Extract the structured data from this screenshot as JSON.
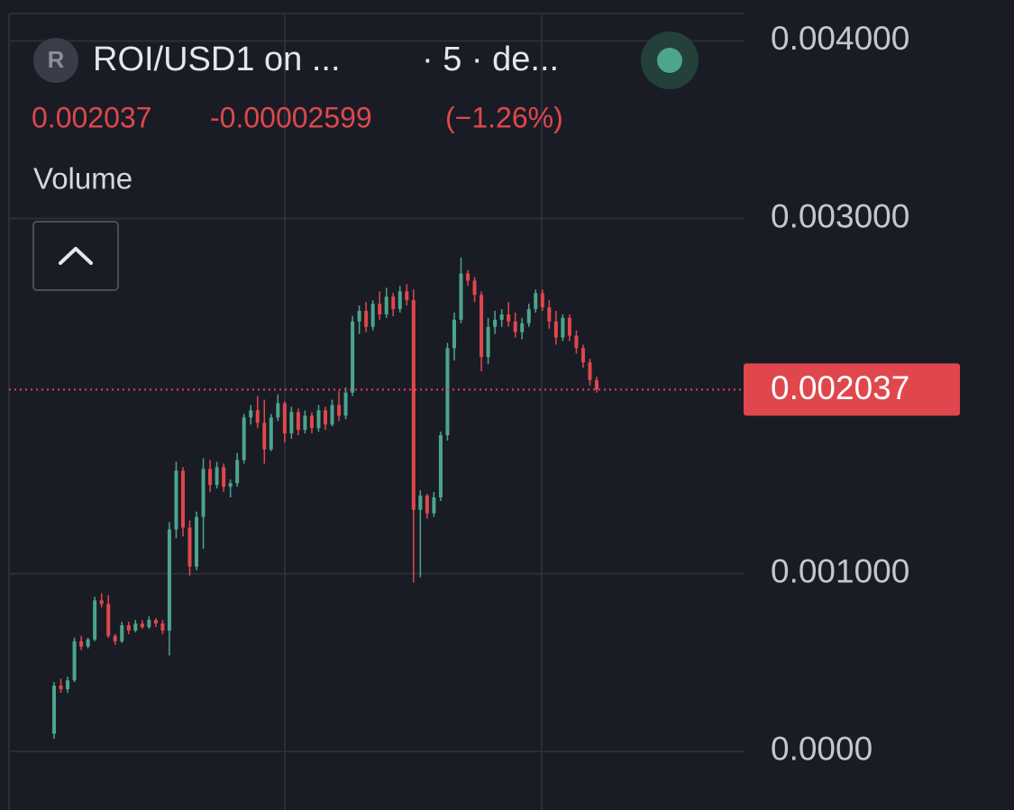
{
  "header": {
    "icon_letter": "R",
    "symbol": "ROI/USD1 on ...",
    "interval": "· 5 · de...",
    "change": "-0.00002599",
    "change_pct": "(−1.26%)",
    "indicator": "Volume"
  },
  "chart_data": {
    "type": "candlestick",
    "up_color": "#4ca58c",
    "down_color": "#e0474c",
    "grid": true,
    "ylim": [
      -0.00033,
      0.00423
    ],
    "yticks": [
      {
        "value": 0.004,
        "label": "0.004000"
      },
      {
        "value": 0.003,
        "label": "0.003000"
      },
      {
        "value": 0.001,
        "label": "0.001000"
      },
      {
        "value": 0,
        "label": "0.0000"
      }
    ],
    "last_price": 0.002037,
    "open": [
      0.0001,
      0.00037,
      0.00035,
      0.0004,
      0.00062,
      0.00059,
      0.00063,
      0.00085,
      0.00083,
      0.00065,
      0.00062,
      0.00071,
      0.00068,
      0.00072,
      0.0007,
      0.00074,
      0.00072,
      0.00068,
      0.00125,
      0.00158,
      0.00126,
      0.00104,
      0.00132,
      0.00159,
      0.0015,
      0.0016,
      0.00149,
      0.00151,
      0.00164,
      0.00188,
      0.00192,
      0.00185,
      0.0017,
      0.00188,
      0.00196,
      0.00179,
      0.00191,
      0.00181,
      0.00189,
      0.00182,
      0.00192,
      0.00184,
      0.00195,
      0.00189,
      0.00202,
      0.00242,
      0.00248,
      0.00239,
      0.00252,
      0.00246,
      0.00256,
      0.00249,
      0.00259,
      0.00254,
      0.00136,
      0.00144,
      0.00134,
      0.00143,
      0.00178,
      0.00227,
      0.00243,
      0.00269,
      0.00265,
      0.00257,
      0.00222,
      0.00239,
      0.00243,
      0.00246,
      0.00242,
      0.00236,
      0.00241,
      0.00249,
      0.00258,
      0.0025,
      0.00242,
      0.00233,
      0.00244,
      0.00234,
      0.00227,
      0.00219,
      0.00209
    ],
    "high": [
      0.00039,
      0.00041,
      0.00042,
      0.00064,
      0.00065,
      0.00064,
      0.00087,
      0.00089,
      0.00088,
      0.00066,
      0.00073,
      0.00073,
      0.00074,
      0.00074,
      0.00076,
      0.00075,
      0.00074,
      0.00129,
      0.00163,
      0.0016,
      0.0013,
      0.00135,
      0.00165,
      0.00164,
      0.00163,
      0.00162,
      0.00153,
      0.00168,
      0.0019,
      0.00195,
      0.002,
      0.00198,
      0.0019,
      0.00201,
      0.00197,
      0.00194,
      0.00193,
      0.00192,
      0.00191,
      0.00195,
      0.00194,
      0.00198,
      0.00203,
      0.00205,
      0.00245,
      0.00251,
      0.00253,
      0.00254,
      0.00259,
      0.00261,
      0.00258,
      0.00262,
      0.00263,
      0.0026,
      0.00147,
      0.00145,
      0.00146,
      0.0018,
      0.0023,
      0.00247,
      0.00278,
      0.00271,
      0.00267,
      0.00259,
      0.00244,
      0.00248,
      0.00249,
      0.00253,
      0.00247,
      0.00244,
      0.00252,
      0.0026,
      0.0026,
      0.00254,
      0.00248,
      0.00246,
      0.00246,
      0.00237,
      0.00229,
      0.00221,
      0.00211
    ],
    "low": [
      7e-05,
      0.00033,
      0.00033,
      0.00039,
      0.00057,
      0.00058,
      0.00062,
      0.00081,
      0.00064,
      0.0006,
      0.00061,
      0.00066,
      0.00067,
      0.00069,
      0.00069,
      0.0007,
      0.00066,
      0.00054,
      0.0012,
      0.00121,
      0.00099,
      0.00102,
      0.00114,
      0.00146,
      0.00148,
      0.00146,
      0.00143,
      0.00149,
      0.00162,
      0.00184,
      0.00182,
      0.00162,
      0.00169,
      0.00186,
      0.00174,
      0.00176,
      0.00178,
      0.00179,
      0.00179,
      0.0018,
      0.00181,
      0.00183,
      0.00186,
      0.00187,
      0.002,
      0.00235,
      0.00236,
      0.00237,
      0.00243,
      0.00244,
      0.00245,
      0.00247,
      0.00251,
      0.00095,
      0.00098,
      0.00131,
      0.00132,
      0.00141,
      0.00175,
      0.0022,
      0.00241,
      0.00262,
      0.00253,
      0.00214,
      0.00218,
      0.00235,
      0.00239,
      0.00239,
      0.00233,
      0.00232,
      0.00239,
      0.00247,
      0.00248,
      0.00238,
      0.00229,
      0.00231,
      0.00231,
      0.00224,
      0.00216,
      0.00206,
      0.00202
    ],
    "close": [
      0.00037,
      0.00035,
      0.0004,
      0.00062,
      0.00059,
      0.00063,
      0.00085,
      0.00083,
      0.00065,
      0.00062,
      0.00071,
      0.00068,
      0.00072,
      0.0007,
      0.00074,
      0.00072,
      0.00068,
      0.00125,
      0.00158,
      0.00126,
      0.00104,
      0.00132,
      0.00159,
      0.0015,
      0.0016,
      0.00149,
      0.00151,
      0.00164,
      0.00188,
      0.00192,
      0.00185,
      0.0017,
      0.00188,
      0.00196,
      0.00179,
      0.00191,
      0.00181,
      0.00189,
      0.00182,
      0.00192,
      0.00184,
      0.00195,
      0.00189,
      0.00202,
      0.00242,
      0.00248,
      0.00239,
      0.00252,
      0.00246,
      0.00256,
      0.00249,
      0.00259,
      0.00254,
      0.00136,
      0.00144,
      0.00134,
      0.00143,
      0.00178,
      0.00227,
      0.00243,
      0.00269,
      0.00265,
      0.00257,
      0.00222,
      0.00239,
      0.00243,
      0.00246,
      0.00242,
      0.00236,
      0.00241,
      0.00249,
      0.00258,
      0.0025,
      0.00242,
      0.00233,
      0.00244,
      0.00234,
      0.00227,
      0.00219,
      0.00209,
      0.002037
    ]
  }
}
